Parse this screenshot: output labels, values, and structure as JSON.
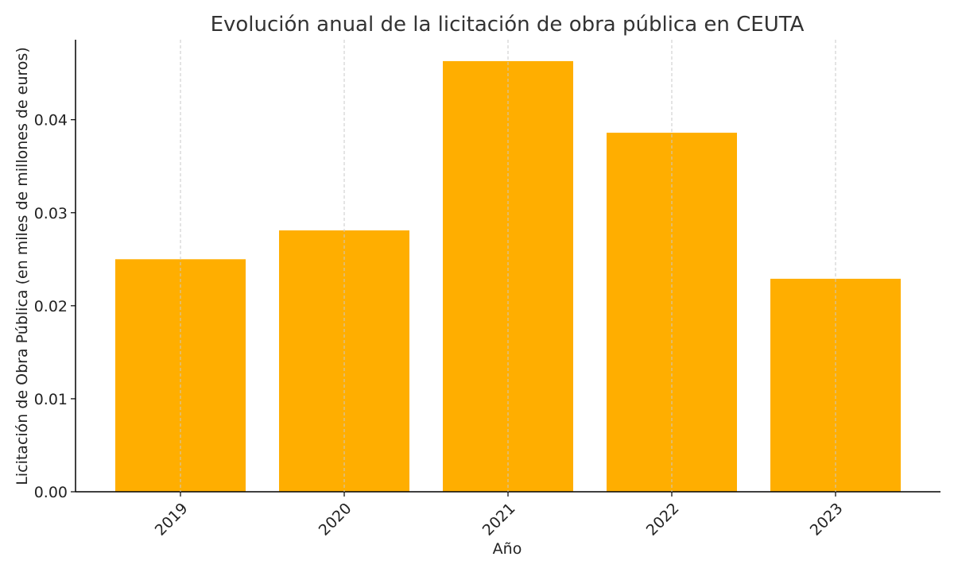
{
  "chart_data": {
    "type": "bar",
    "title": "Evolución anual de la licitación de obra pública en CEUTA",
    "xlabel": "Año",
    "ylabel": "Licitación de Obra Pública (en miles de millones de euros)",
    "categories": [
      "2019",
      "2020",
      "2021",
      "2022",
      "2023"
    ],
    "values": [
      0.025,
      0.0281,
      0.0463,
      0.0386,
      0.0229
    ],
    "ylim": [
      0,
      0.0486
    ],
    "yticks": [
      0.0,
      0.01,
      0.02,
      0.03,
      0.04
    ],
    "ytick_labels": [
      "0.00",
      "0.01",
      "0.02",
      "0.03",
      "0.04"
    ],
    "bar_color": "#FFAE00",
    "grid": "vertical dashed at categories",
    "xtick_rotation": "45°"
  }
}
